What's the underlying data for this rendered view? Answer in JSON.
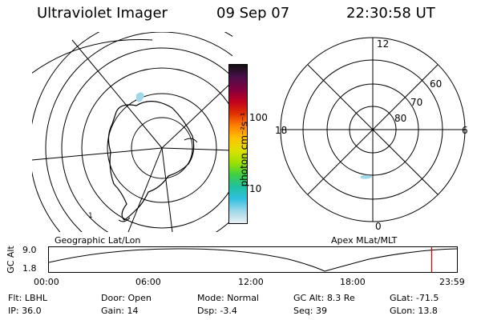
{
  "header": {
    "title": "Ultraviolet Imager",
    "date": "09 Sep 07",
    "time": "22:30:58 UT"
  },
  "colorbar": {
    "label": "photon cm⁻²s⁻¹",
    "ticks": [
      "100",
      "10"
    ],
    "colors": [
      "#101010",
      "#4b0f4b",
      "#800040",
      "#c00020",
      "#e03000",
      "#ff8000",
      "#ffc000",
      "#e0e000",
      "#a0e000",
      "#40d040",
      "#20c0a0",
      "#30c0e0",
      "#a0d8e8",
      "#e8f0f4"
    ]
  },
  "left_map": {
    "caption": "Geographic Lat/Lon",
    "marker": "1"
  },
  "right_map": {
    "caption": "Apex MLat/MLT",
    "mlt": {
      "top": "12",
      "left": "18",
      "right": "6",
      "bottom": "0"
    },
    "mlat": [
      "60",
      "70",
      "80"
    ]
  },
  "timeline": {
    "axis_label": "GC Alt",
    "yticks": [
      "9.0",
      "1.8"
    ],
    "xticks": [
      "00:00",
      "06:00",
      "12:00",
      "18:00",
      "23:59"
    ],
    "current_time_fraction": 0.938
  },
  "status": {
    "row1": [
      {
        "label": "Flt:",
        "value": "LBHL"
      },
      {
        "label": "Door:",
        "value": "Open"
      },
      {
        "label": "Mode:",
        "value": "Normal"
      },
      {
        "label": "GC Alt:",
        "value": "8.3 Re"
      },
      {
        "label": "GLat:",
        "value": "-71.5"
      }
    ],
    "row2": [
      {
        "label": "IP:",
        "value": "36.0"
      },
      {
        "label": "Gain:",
        "value": "14"
      },
      {
        "label": "Dsp:",
        "value": "-3.4"
      },
      {
        "label": "Seq:",
        "value": "39"
      },
      {
        "label": "GLon:",
        "value": "13.8"
      }
    ]
  }
}
